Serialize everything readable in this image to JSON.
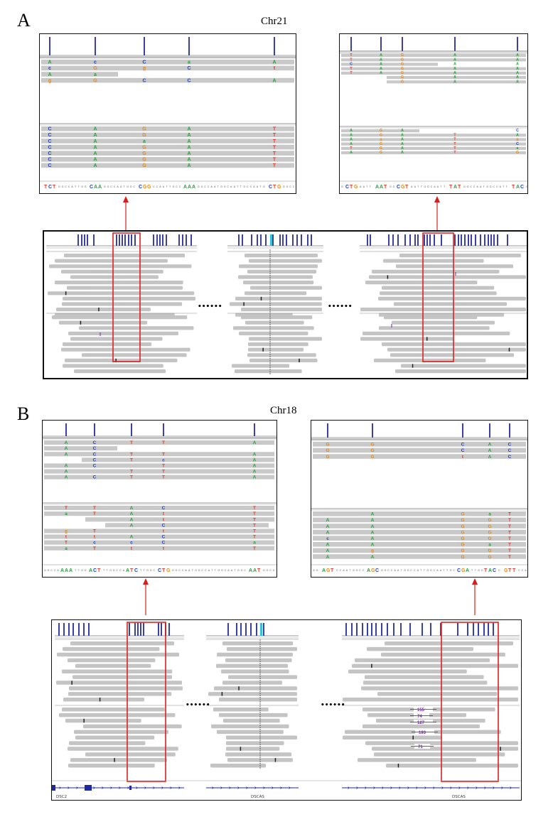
{
  "figure": {
    "panels": [
      {
        "letter": "A",
        "chromosome": "Chr21",
        "left_zoom": {
          "reference": [
            "TCT",
            "CAA",
            "CGG",
            "AAA",
            "CTG"
          ],
          "tracks": [
            {
              "name": "top-group",
              "rows": [
                [
                  "A",
                  "c",
                  "C",
                  "a",
                  "A"
                ],
                [
                  "c",
                  "G",
                  "g",
                  "C",
                  "t"
                ],
                [
                  "A",
                  "a",
                  "",
                  "",
                  ""
                ],
                [
                  "g",
                  "G",
                  "C",
                  "C",
                  "A"
                ]
              ]
            },
            {
              "name": "bottom-group",
              "rows": [
                [
                  "C",
                  "A",
                  "G",
                  "A",
                  "T"
                ],
                [
                  "C",
                  "A",
                  "G",
                  "A",
                  "T"
                ],
                [
                  "C",
                  "A",
                  "a",
                  "A",
                  "T"
                ],
                [
                  "C",
                  "A",
                  "G",
                  "A",
                  "T"
                ],
                [
                  "C",
                  "A",
                  "G",
                  "A",
                  "T"
                ],
                [
                  "C",
                  "A",
                  "G",
                  "A",
                  "T"
                ],
                [
                  "C",
                  "A",
                  "G",
                  "A",
                  "T"
                ]
              ]
            }
          ]
        },
        "right_zoom": {
          "reference": [
            "CTG",
            "AAT",
            "CGT",
            "TAT",
            "TAC"
          ],
          "tracks": [
            {
              "name": "top-group",
              "rows": [
                [
                  "T",
                  "A",
                  "G",
                  "A",
                  "A"
                ],
                [
                  "T",
                  "A",
                  "G",
                  "A",
                  "A"
                ],
                [
                  "C",
                  "A",
                  "G",
                  "A",
                  "A"
                ],
                [
                  "T",
                  "A",
                  "G",
                  "A",
                  "A"
                ],
                [
                  "T",
                  "A",
                  "G",
                  "A",
                  "A"
                ],
                [
                  "",
                  "",
                  "G",
                  "A",
                  "A"
                ],
                [
                  "",
                  "",
                  "G",
                  "A",
                  "A"
                ]
              ]
            },
            {
              "name": "bottom-group",
              "rows": [
                [
                  "A",
                  "G",
                  "A",
                  "",
                  "C"
                ],
                [
                  "A",
                  "G",
                  "A",
                  "T",
                  "A"
                ],
                [
                  "A",
                  "g",
                  "A",
                  "T",
                  "g"
                ],
                [
                  "A",
                  "G",
                  "A",
                  "T",
                  "C"
                ],
                [
                  "T",
                  "G",
                  "A",
                  "T",
                  "a"
                ],
                [
                  "A",
                  "G",
                  "A",
                  "T",
                  "G"
                ]
              ]
            }
          ]
        },
        "ellipsis": "••••••"
      },
      {
        "letter": "B",
        "chromosome": "Chr18",
        "left_zoom": {
          "reference": [
            "AAA",
            "ACT",
            "ATC",
            "CTG",
            "AAT"
          ],
          "tracks": [
            {
              "name": "top-group",
              "rows": [
                [
                  "A",
                  "C",
                  "T",
                  "T",
                  "A"
                ],
                [
                  "A",
                  "C",
                  "",
                  "",
                  ""
                ],
                [
                  "A",
                  "C",
                  "T",
                  "T",
                  "A"
                ],
                [
                  "",
                  "C",
                  "T",
                  "c",
                  "A"
                ],
                [
                  "A",
                  "C",
                  "",
                  "T",
                  "A"
                ],
                [
                  "A",
                  "",
                  "T",
                  "T",
                  "A"
                ],
                [
                  "A",
                  "C",
                  "T",
                  "T",
                  "A"
                ]
              ]
            },
            {
              "name": "bottom-group",
              "rows": [
                [
                  "T",
                  "T",
                  "A",
                  "C",
                  "T"
                ],
                [
                  "a",
                  "T",
                  "A",
                  "t",
                  "T"
                ],
                [
                  "",
                  "",
                  "A",
                  "t",
                  "T"
                ],
                [
                  "",
                  "",
                  "A",
                  "C",
                  "T"
                ],
                [
                  "g",
                  "T",
                  "",
                  "t",
                  "T"
                ],
                [
                  "t",
                  "t",
                  "A",
                  "C",
                  "T"
                ],
                [
                  "T",
                  "c",
                  "c",
                  "C",
                  "a"
                ],
                [
                  "a",
                  "T",
                  "t",
                  "t",
                  "T"
                ]
              ]
            }
          ]
        },
        "right_zoom": {
          "reference": [
            "AGT",
            "AGC",
            "CGA",
            "TAC",
            "GTT"
          ],
          "tracks": [
            {
              "name": "top-group",
              "rows": [
                [
                  "G",
                  "G",
                  "C",
                  "A",
                  "C"
                ],
                [
                  "G",
                  "G",
                  "C",
                  "A",
                  "C"
                ],
                [
                  "G",
                  "G",
                  "t",
                  "A",
                  "C"
                ]
              ]
            },
            {
              "name": "bottom-group",
              "rows": [
                [
                  "",
                  "A",
                  "G",
                  "a",
                  "T"
                ],
                [
                  "A",
                  "A",
                  "G",
                  "G",
                  "T"
                ],
                [
                  "A",
                  "A",
                  "G",
                  "G",
                  "T"
                ],
                [
                  "A",
                  "A",
                  "G",
                  "G",
                  "T"
                ],
                [
                  "c",
                  "A",
                  "G",
                  "G",
                  "T"
                ],
                [
                  "A",
                  "A",
                  "G",
                  "a",
                  "T"
                ],
                [
                  "A",
                  "g",
                  "G",
                  "G",
                  "T"
                ],
                [
                  "A",
                  "A",
                  "G",
                  "G",
                  "T"
                ]
              ]
            }
          ]
        },
        "insertion_labels": [
          "155",
          "74",
          "127",
          "193",
          "71"
        ],
        "gene_labels": [
          "DSC2",
          "DSCAS",
          "DSCAS"
        ],
        "ellipsis": "••••••"
      }
    ],
    "base_colors": {
      "A": "#22a33a",
      "C": "#1f3fbf",
      "G": "#e08a1e",
      "T": "#e23b2a"
    },
    "highlight_color": "#e02020"
  }
}
